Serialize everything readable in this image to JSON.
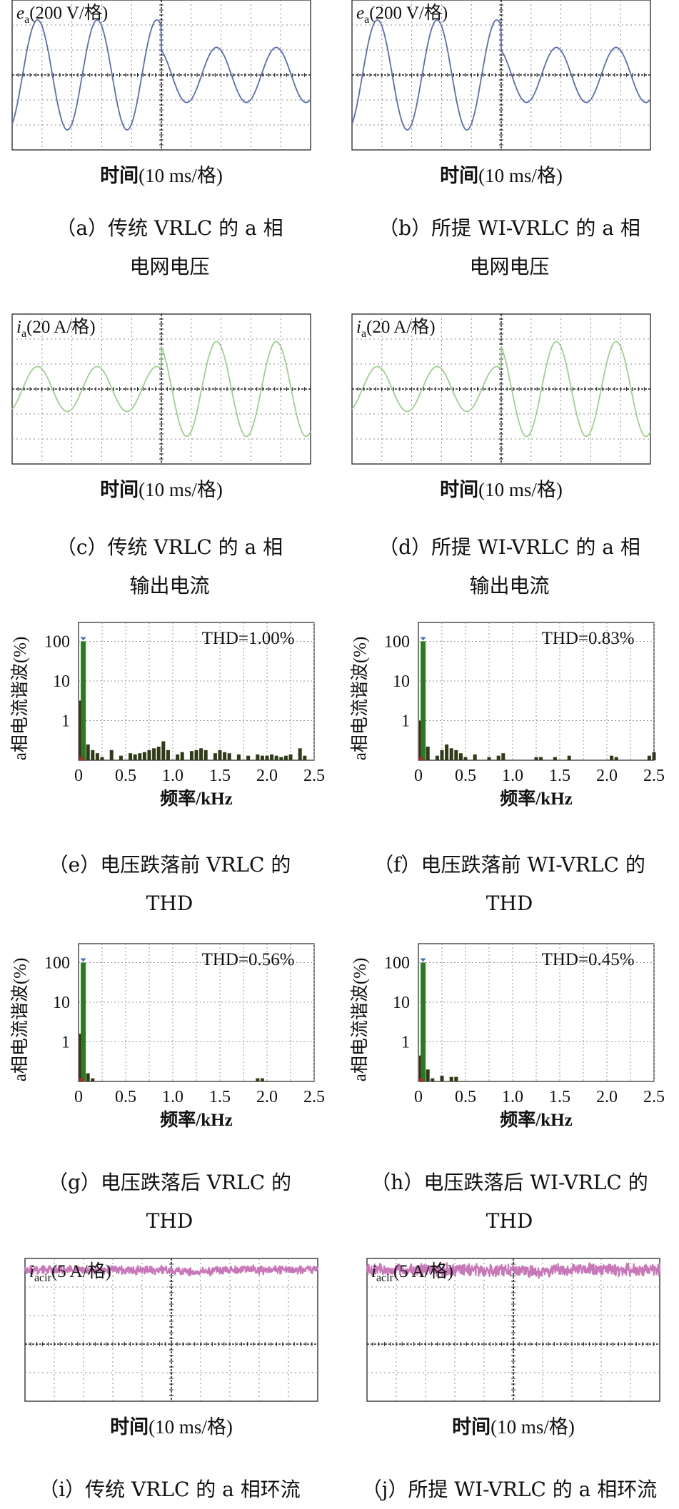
{
  "colors": {
    "voltage": "#5a6db5",
    "current": "#9ed08f",
    "circ": "#c878b8",
    "bar_fund": "#2a7a1e",
    "bar_harm": "#2f3a18",
    "bar_dc": "#b02a2a",
    "marker": "#4a6fc4",
    "grid": "#888888",
    "frame": "#333333"
  },
  "scope": [
    {
      "id": "a",
      "label_main": "e",
      "label_sub": "a",
      "label_unit": "(200 V/格)",
      "xlabel_cn": "时间",
      "xlabel_unit": "(10 ms/格)",
      "caption": [
        "（a）传统 VRLC 的 a 相",
        "电网电压"
      ],
      "wave": {
        "kind": "sine",
        "amp_before_div": 2.2,
        "amp_after_div": 1.1,
        "offset_div": 0,
        "periods_per_div": 0.5,
        "noise": 0
      },
      "color_key": "voltage"
    },
    {
      "id": "b",
      "label_main": "e",
      "label_sub": "a",
      "label_unit": "(200 V/格)",
      "xlabel_cn": "时间",
      "xlabel_unit": "(10 ms/格)",
      "caption": [
        "（b）所提 WI-VRLC 的 a 相",
        "电网电压"
      ],
      "wave": {
        "kind": "sine",
        "amp_before_div": 2.2,
        "amp_after_div": 1.1,
        "offset_div": 0,
        "periods_per_div": 0.5,
        "noise": 0
      },
      "color_key": "voltage"
    },
    {
      "id": "c",
      "label_main": "i",
      "label_sub": "a",
      "label_unit": "(20 A/格)",
      "xlabel_cn": "时间",
      "xlabel_unit": "(10 ms/格)",
      "caption": [
        "（c）传统 VRLC 的 a 相",
        "输出电流"
      ],
      "wave": {
        "kind": "sine",
        "amp_before_div": 0.9,
        "amp_after_div": 1.9,
        "offset_div": 0,
        "periods_per_div": 0.5,
        "noise": 0
      },
      "color_key": "current"
    },
    {
      "id": "d",
      "label_main": "i",
      "label_sub": "a",
      "label_unit": "(20 A/格)",
      "xlabel_cn": "时间",
      "xlabel_unit": "(10 ms/格)",
      "caption": [
        "（d）所提 WI-VRLC 的 a 相",
        "输出电流"
      ],
      "wave": {
        "kind": "sine",
        "amp_before_div": 0.9,
        "amp_after_div": 1.9,
        "offset_div": 0,
        "periods_per_div": 0.5,
        "noise": 0
      },
      "color_key": "current"
    },
    {
      "id": "i",
      "label_main": "i",
      "label_sub": "acir",
      "label_unit": "(5 A/格)",
      "xlabel_cn": "时间",
      "xlabel_unit": "(10 ms/格)",
      "caption": [
        "（i）传统 VRLC 的 a 相环流"
      ],
      "wave": {
        "kind": "noise",
        "amp_before_div": 0,
        "amp_after_div": 0,
        "offset_div": 2.6,
        "periods_per_div": 0,
        "noise": 0.12
      },
      "color_key": "circ"
    },
    {
      "id": "j",
      "label_main": "i",
      "label_sub": "acir",
      "label_unit": "(5 A/格)",
      "xlabel_cn": "时间",
      "xlabel_unit": "(10 ms/格)",
      "caption": [
        "（j）所提 WI-VRLC 的 a 相环流"
      ],
      "wave": {
        "kind": "noise",
        "amp_before_div": 0,
        "amp_after_div": 0,
        "offset_div": 2.6,
        "periods_per_div": 0,
        "noise": 0.18
      },
      "color_key": "circ"
    }
  ],
  "chart_data": [
    {
      "id": "e",
      "type": "bar",
      "title": "THD=1.00%",
      "xlabel": "频率/kHz",
      "ylabel": "a相电流谐波(%)",
      "xlim": [
        0,
        2.5
      ],
      "ylim_log": [
        0.1,
        300
      ],
      "yscale": "log",
      "xticks": [
        "0",
        "0.5",
        "1.0",
        "1.5",
        "2.0",
        "2.5"
      ],
      "yticks": [
        "100",
        "10",
        "1"
      ],
      "x": [
        0,
        0.05,
        0.1,
        0.15,
        0.2,
        0.25,
        0.35,
        0.45,
        0.55,
        0.6,
        0.65,
        0.7,
        0.75,
        0.8,
        0.85,
        0.9,
        0.95,
        1.05,
        1.1,
        1.2,
        1.25,
        1.3,
        1.35,
        1.45,
        1.5,
        1.55,
        1.6,
        1.7,
        1.8,
        1.9,
        1.95,
        2.0,
        2.05,
        2.1,
        2.15,
        2.2,
        2.25,
        2.35,
        2.4
      ],
      "values": [
        3.2,
        100,
        0.25,
        0.18,
        0.15,
        0.12,
        0.18,
        0.13,
        0.15,
        0.14,
        0.15,
        0.16,
        0.18,
        0.2,
        0.22,
        0.3,
        0.18,
        0.14,
        0.16,
        0.17,
        0.18,
        0.2,
        0.18,
        0.15,
        0.18,
        0.16,
        0.15,
        0.14,
        0.13,
        0.14,
        0.13,
        0.13,
        0.14,
        0.13,
        0.12,
        0.13,
        0.14,
        0.2,
        0.13
      ],
      "caption": [
        "（e）电压跌落前 VRLC 的",
        "THD"
      ]
    },
    {
      "id": "f",
      "type": "bar",
      "title": "THD=0.83%",
      "xlabel": "频率/kHz",
      "ylabel": "a相电流谐波(%)",
      "xlim": [
        0,
        2.5
      ],
      "ylim_log": [
        0.1,
        300
      ],
      "yscale": "log",
      "xticks": [
        "0",
        "0.5",
        "1.0",
        "1.5",
        "2.0",
        "2.5"
      ],
      "yticks": [
        "100",
        "10",
        "1"
      ],
      "x": [
        0,
        0.05,
        0.1,
        0.2,
        0.25,
        0.3,
        0.35,
        0.4,
        0.45,
        0.5,
        0.6,
        0.75,
        0.85,
        0.9,
        1.25,
        1.3,
        1.45,
        1.6,
        2.05,
        2.1,
        2.45,
        2.5
      ],
      "values": [
        1.0,
        100,
        0.22,
        0.13,
        0.18,
        0.25,
        0.2,
        0.18,
        0.15,
        0.12,
        0.14,
        0.12,
        0.13,
        0.15,
        0.12,
        0.12,
        0.12,
        0.13,
        0.13,
        0.12,
        0.13,
        0.16
      ],
      "caption": [
        "（f）电压跌落前 WI-VRLC 的",
        "THD"
      ]
    },
    {
      "id": "g",
      "type": "bar",
      "title": "THD=0.56%",
      "xlabel": "频率/kHz",
      "ylabel": "a相电流谐波(%)",
      "xlim": [
        0,
        2.5
      ],
      "ylim_log": [
        0.1,
        300
      ],
      "yscale": "log",
      "xticks": [
        "0",
        "0.5",
        "1.0",
        "1.5",
        "2.0",
        "2.5"
      ],
      "yticks": [
        "100",
        "10",
        "1"
      ],
      "x": [
        0,
        0.05,
        0.1,
        0.15,
        1.9,
        1.95
      ],
      "values": [
        1.6,
        100,
        0.16,
        0.12,
        0.12,
        0.12
      ],
      "caption": [
        "（g）电压跌落后 VRLC 的",
        "THD"
      ]
    },
    {
      "id": "h",
      "type": "bar",
      "title": "THD=0.45%",
      "xlabel": "频率/kHz",
      "ylabel": "a相电流谐波(%)",
      "xlim": [
        0,
        2.5
      ],
      "ylim_log": [
        0.1,
        300
      ],
      "yscale": "log",
      "xticks": [
        "0",
        "0.5",
        "1.0",
        "1.5",
        "2.0",
        "2.5"
      ],
      "yticks": [
        "100",
        "10",
        "1"
      ],
      "x": [
        0,
        0.05,
        0.1,
        0.15,
        0.25,
        0.35,
        0.4
      ],
      "values": [
        0.45,
        100,
        0.2,
        0.12,
        0.14,
        0.13,
        0.13
      ],
      "caption": [
        "（h）电压跌落后 WI-VRLC 的",
        "THD"
      ]
    }
  ]
}
